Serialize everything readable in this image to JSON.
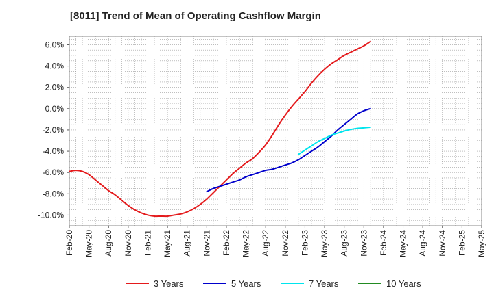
{
  "chart_data": {
    "type": "line",
    "title": "[8011]  Trend of Mean of Operating Cashflow Margin",
    "xlabel": "",
    "ylabel": "",
    "ylim": [
      -11,
      6.8
    ],
    "y_ticks": [
      6.0,
      4.0,
      2.0,
      0.0,
      -2.0,
      -4.0,
      -6.0,
      -8.0,
      -10.0
    ],
    "y_tick_labels": [
      "6.0%",
      "4.0%",
      "2.0%",
      "0.0%",
      "-2.0%",
      "-4.0%",
      "-6.0%",
      "-8.0%",
      "-10.0%"
    ],
    "x_tick_labels": [
      "Feb-20",
      "May-20",
      "Aug-20",
      "Nov-20",
      "Feb-21",
      "May-21",
      "Aug-21",
      "Nov-21",
      "Feb-22",
      "May-22",
      "Aug-22",
      "Nov-22",
      "Feb-23",
      "May-23",
      "Aug-23",
      "Nov-23",
      "Feb-24",
      "May-24",
      "Aug-24",
      "Nov-24",
      "Feb-25",
      "May-25"
    ],
    "grid": true,
    "legend_position": "bottom",
    "series": [
      {
        "name": "3 Years",
        "color": "#e41a1c",
        "start_index": 0,
        "values": [
          -5.9,
          -5.8,
          -5.9,
          -6.2,
          -6.7,
          -7.2,
          -7.7,
          -8.1,
          -8.6,
          -9.1,
          -9.5,
          -9.8,
          -10.0,
          -10.1,
          -10.1,
          -10.1,
          -10.0,
          -9.9,
          -9.7,
          -9.4,
          -9.0,
          -8.5,
          -7.9,
          -7.3,
          -6.7,
          -6.1,
          -5.6,
          -5.1,
          -4.7,
          -4.1,
          -3.4,
          -2.5,
          -1.5,
          -0.6,
          0.2,
          0.9,
          1.6,
          2.4,
          3.1,
          3.7,
          4.2,
          4.6,
          5.0,
          5.3,
          5.6,
          5.9,
          6.3
        ]
      },
      {
        "name": "5 Years",
        "color": "#0000cc",
        "start_index": 21,
        "values": [
          -7.8,
          -7.5,
          -7.3,
          -7.1,
          -6.9,
          -6.7,
          -6.4,
          -6.2,
          -6.0,
          -5.8,
          -5.7,
          -5.5,
          -5.3,
          -5.1,
          -4.8,
          -4.4,
          -4.0,
          -3.6,
          -3.1,
          -2.6,
          -2.0,
          -1.5,
          -1.0,
          -0.5,
          -0.2,
          0.0
        ]
      },
      {
        "name": "7 Years",
        "color": "#00e5ee",
        "start_index": 35,
        "values": [
          -4.3,
          -3.9,
          -3.5,
          -3.1,
          -2.8,
          -2.5,
          -2.3,
          -2.1,
          -1.95,
          -1.85,
          -1.8,
          -1.75
        ]
      },
      {
        "name": "10 Years",
        "color": "#228b22",
        "start_index": 0,
        "values": []
      }
    ]
  }
}
